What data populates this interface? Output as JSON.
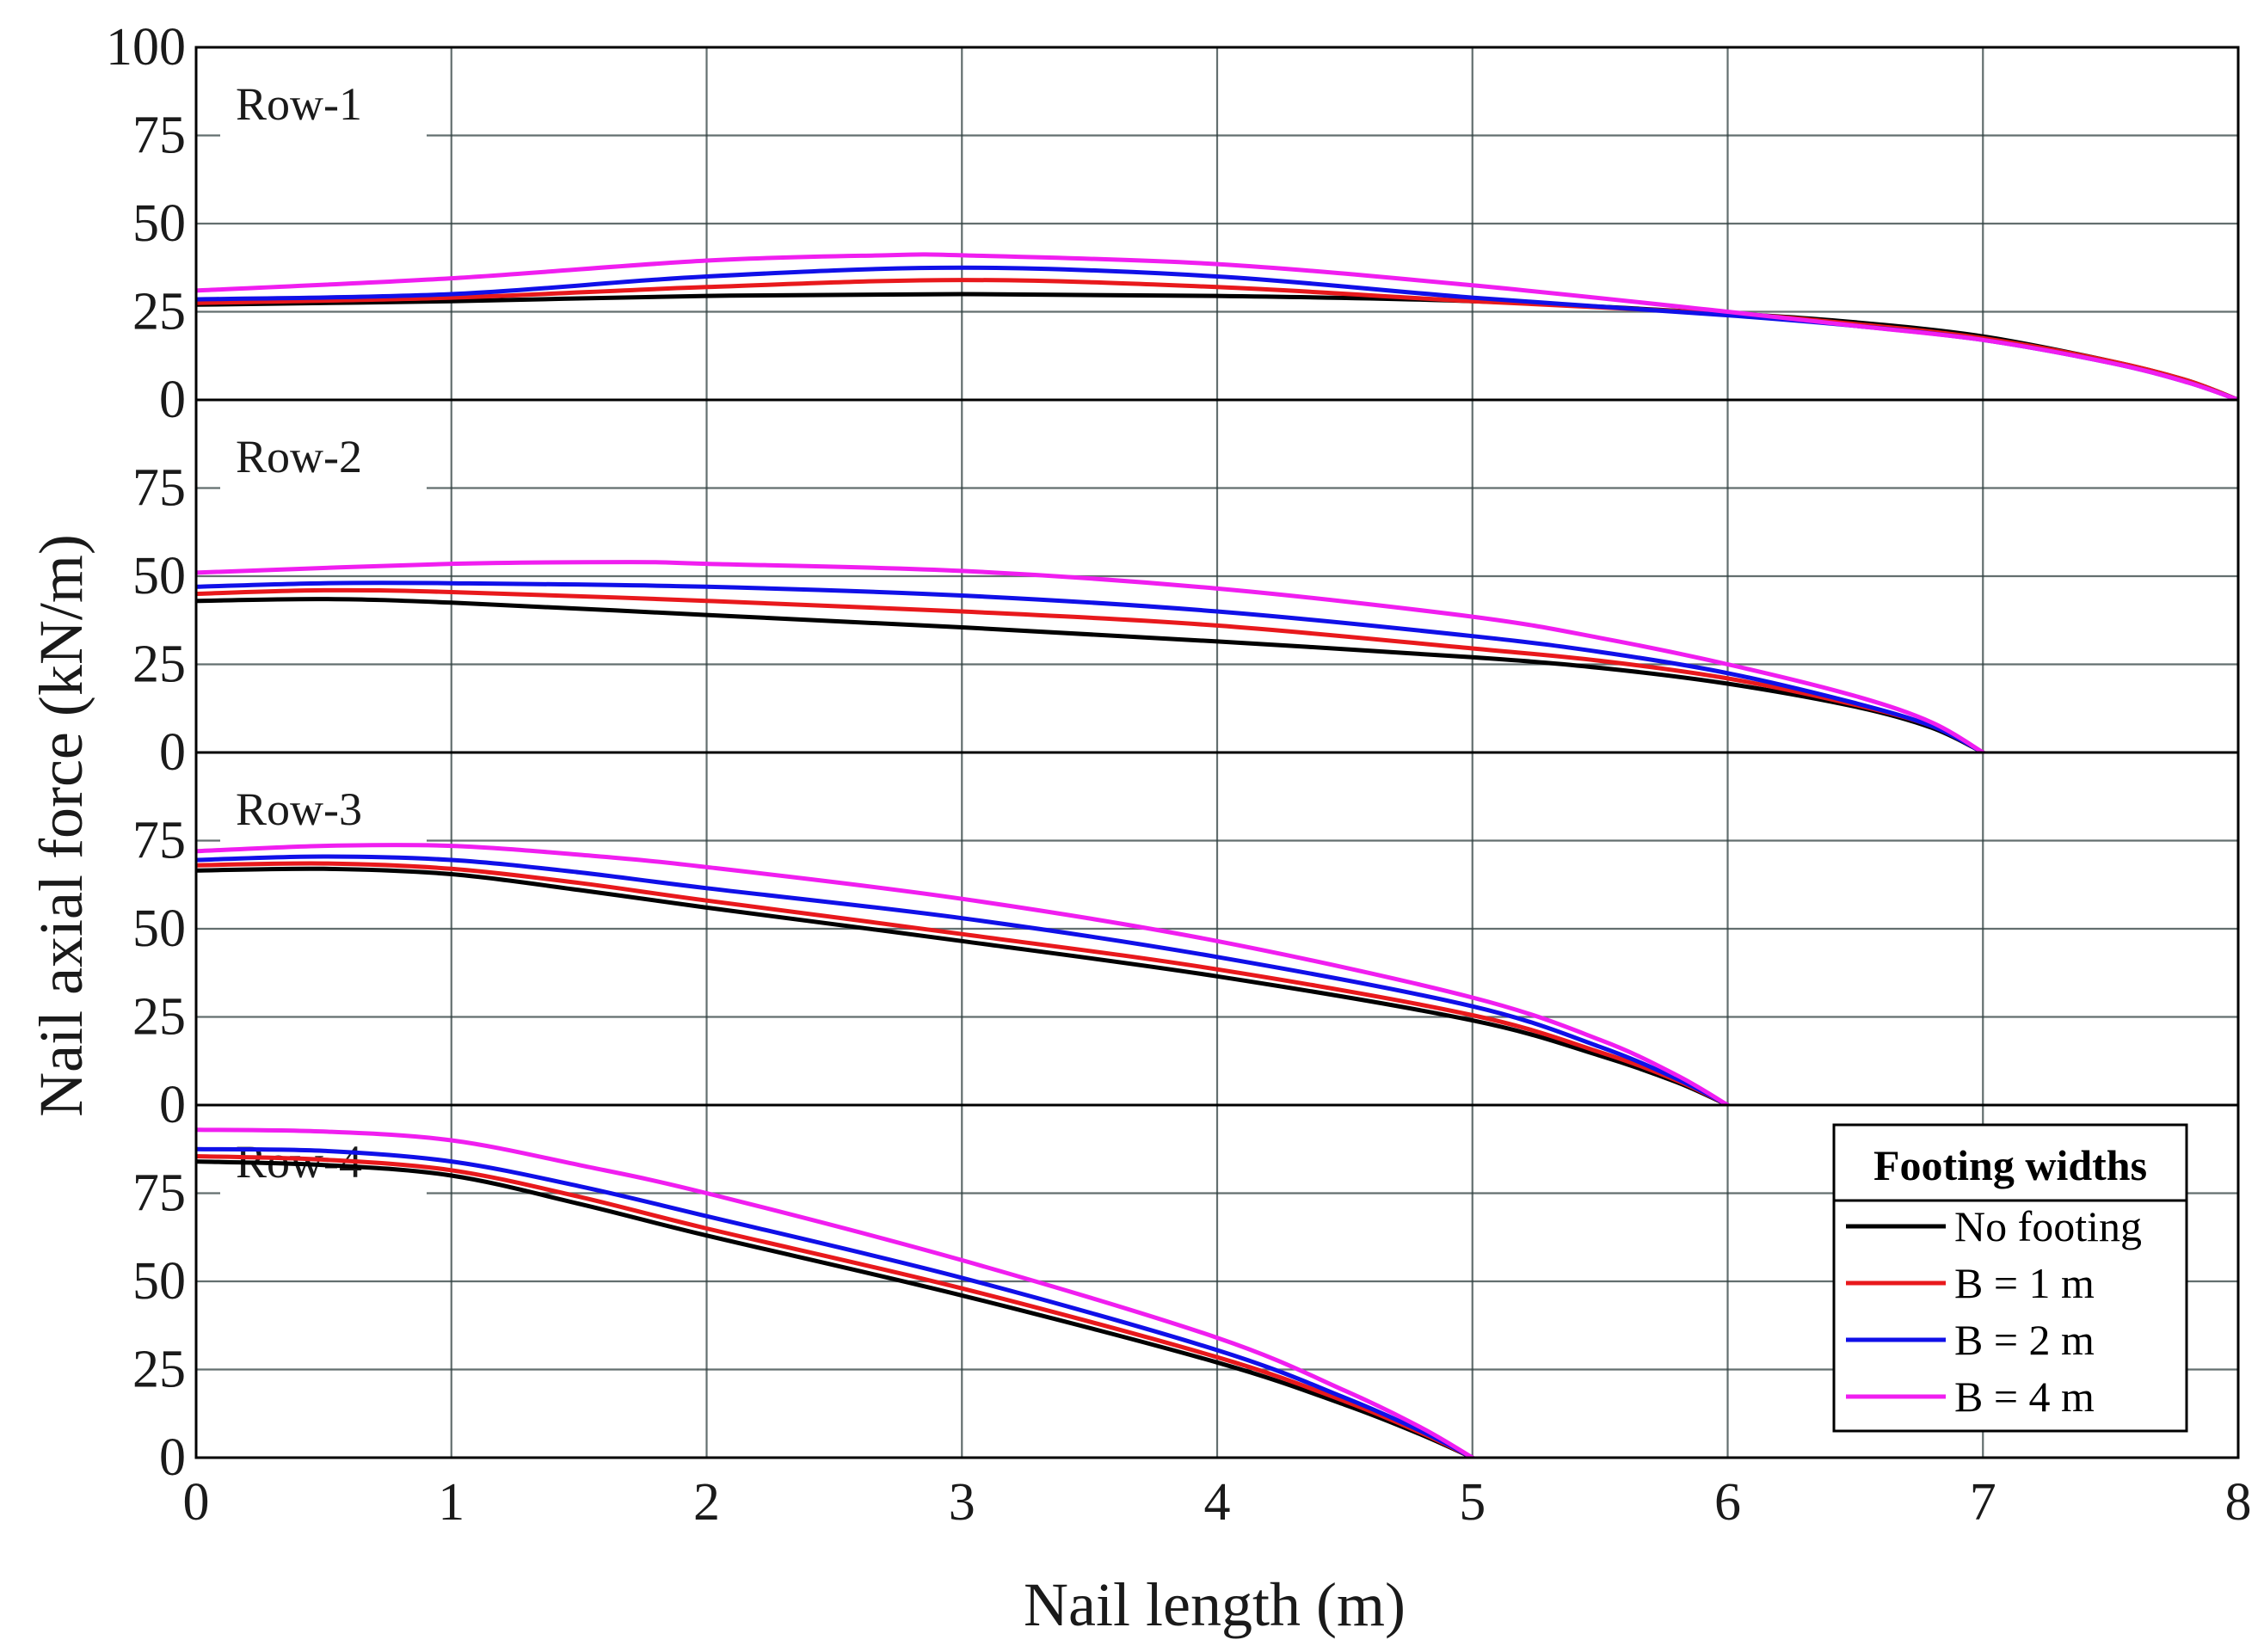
{
  "chart_data": {
    "type": "line",
    "xlabel": "Nail length (m)",
    "ylabel": "Nail axial force (kN/m)",
    "xlim": [
      0,
      8
    ],
    "x_ticks": [
      "0",
      "1",
      "2",
      "3",
      "4",
      "5",
      "6",
      "7",
      "8"
    ],
    "grid": true,
    "legend": {
      "title": "Footing widths",
      "placement": "bottom-right",
      "entries": [
        "No footing",
        "B = 1 m",
        "B = 2 m",
        "B = 4 m"
      ]
    },
    "series_colors": {
      "No footing": "#000000",
      "B = 1 m": "#e8191c",
      "B = 2 m": "#1010e8",
      "B = 4 m": "#f01ef0"
    },
    "panels": [
      {
        "label": "Row-1",
        "ylim": [
          0,
          100
        ],
        "y_ticks": [
          "0",
          "25",
          "50",
          "75",
          "100"
        ],
        "series": [
          {
            "name": "No footing",
            "x": [
              0,
              1,
              2,
              3,
              4,
              5,
              6,
              6.5,
              7,
              7.5,
              7.8,
              8
            ],
            "y": [
              27,
              28,
              29.5,
              30,
              29.5,
              28,
              24.5,
              22,
              18,
              11,
              5.5,
              0
            ]
          },
          {
            "name": "B = 1 m",
            "x": [
              0,
              1,
              2,
              3,
              4,
              5,
              6,
              6.5,
              7,
              7.5,
              7.8,
              8
            ],
            "y": [
              27.5,
              29,
              32,
              34,
              32,
              28,
              24.5,
              21.5,
              17.5,
              11,
              5.5,
              0
            ]
          },
          {
            "name": "B = 2 m",
            "x": [
              0,
              1,
              2,
              3,
              4,
              5,
              6,
              6.5,
              7,
              7.5,
              7.8,
              8
            ],
            "y": [
              28.5,
              30,
              35,
              37.5,
              35,
              29,
              24,
              21,
              17,
              10.5,
              5,
              0
            ]
          },
          {
            "name": "B = 4 m",
            "x": [
              0,
              1,
              2,
              2.7,
              3,
              4,
              5,
              6,
              6.5,
              7,
              7.5,
              7.8,
              8
            ],
            "y": [
              31,
              34.5,
              39.5,
              41,
              41,
              38.5,
              32.5,
              25,
              21,
              17,
              10.5,
              5,
              0
            ]
          }
        ]
      },
      {
        "label": "Row-2",
        "ylim": [
          0,
          100
        ],
        "y_ticks": [
          "0",
          "25",
          "50",
          "75",
          ""
        ],
        "series": [
          {
            "name": "No footing",
            "x": [
              0,
              0.5,
              1,
              2,
              3,
              4,
              5,
              5.5,
              6,
              6.5,
              6.8,
              7
            ],
            "y": [
              43,
              43.5,
              42.5,
              39,
              35.5,
              31.5,
              27,
              24,
              19.5,
              13,
              7,
              0
            ]
          },
          {
            "name": "B = 1 m",
            "x": [
              0,
              0.5,
              1,
              2,
              3,
              4,
              5,
              5.5,
              6,
              6.5,
              6.8,
              7
            ],
            "y": [
              45,
              46,
              45.5,
              43,
              40,
              36,
              29.5,
              26,
              21,
              13.5,
              7.5,
              0
            ]
          },
          {
            "name": "B = 2 m",
            "x": [
              0,
              0.5,
              1,
              2,
              3,
              4,
              5,
              5.5,
              6,
              6.5,
              6.8,
              7
            ],
            "y": [
              47,
              48,
              48,
              47,
              44.5,
              40,
              33,
              28.5,
              22.5,
              14,
              7.5,
              0
            ]
          },
          {
            "name": "B = 4 m",
            "x": [
              0,
              1,
              1.7,
              2,
              3,
              4,
              5,
              5.5,
              6,
              6.5,
              6.8,
              7
            ],
            "y": [
              51,
              53.5,
              54,
              53.5,
              51.5,
              46.5,
              38.5,
              32.5,
              25,
              16,
              8.5,
              0
            ]
          }
        ]
      },
      {
        "label": "Row-3",
        "ylim": [
          0,
          100
        ],
        "y_ticks": [
          "0",
          "25",
          "50",
          "75",
          ""
        ],
        "series": [
          {
            "name": "No footing",
            "x": [
              0,
              0.5,
              1,
              1.5,
              2,
              3,
              4,
              5,
              5.5,
              5.8,
              6
            ],
            "y": [
              66.5,
              67,
              65.5,
              61,
              56,
              46.5,
              36.5,
              24,
              14,
              6.5,
              0
            ]
          },
          {
            "name": "B = 1 m",
            "x": [
              0,
              0.5,
              1,
              1.5,
              2,
              3,
              4,
              5,
              5.5,
              5.8,
              6
            ],
            "y": [
              68,
              68.5,
              67,
              63,
              58,
              48.5,
              38.5,
              25.5,
              15,
              7,
              0
            ]
          },
          {
            "name": "B = 2 m",
            "x": [
              0,
              0.5,
              1,
              1.5,
              2,
              3,
              4,
              5,
              5.5,
              5.8,
              6
            ],
            "y": [
              69.5,
              70.5,
              69.5,
              66,
              61.5,
              53,
              42,
              28,
              16.5,
              7.5,
              0
            ]
          },
          {
            "name": "B = 4 m",
            "x": [
              0,
              0.5,
              1,
              1.5,
              2,
              3,
              4,
              5,
              5.5,
              5.8,
              6
            ],
            "y": [
              72,
              73.5,
              73.5,
              71,
              67.5,
              58.5,
              46.5,
              30.5,
              18.5,
              8.5,
              0
            ]
          }
        ]
      },
      {
        "label": "Row-4",
        "ylim": [
          0,
          100
        ],
        "y_ticks": [
          "0",
          "25",
          "50",
          "75",
          ""
        ],
        "series": [
          {
            "name": "No footing",
            "x": [
              0,
              0.5,
              1,
              1.5,
              2,
              3,
              4,
              4.5,
              4.8,
              5
            ],
            "y": [
              84,
              83,
              80,
              72,
              63,
              46,
              27,
              15,
              6.5,
              0
            ]
          },
          {
            "name": "B = 1 m",
            "x": [
              0,
              0.5,
              1,
              1.5,
              2,
              3,
              4,
              4.5,
              4.8,
              5
            ],
            "y": [
              85.5,
              84.5,
              81.5,
              74,
              65,
              48,
              28.5,
              16,
              7,
              0
            ]
          },
          {
            "name": "B = 2 m",
            "x": [
              0,
              0.5,
              1,
              1.5,
              2,
              3,
              4,
              4.5,
              4.8,
              5
            ],
            "y": [
              87.5,
              87,
              84,
              77,
              68.5,
              51,
              30.5,
              17,
              7.5,
              0
            ]
          },
          {
            "name": "B = 4 m",
            "x": [
              0,
              0.5,
              1,
              1.5,
              2,
              3,
              4,
              4.5,
              4.8,
              5
            ],
            "y": [
              93,
              92.5,
              90,
              83,
              75,
              56,
              34,
              19,
              8.5,
              0
            ]
          }
        ]
      }
    ]
  }
}
